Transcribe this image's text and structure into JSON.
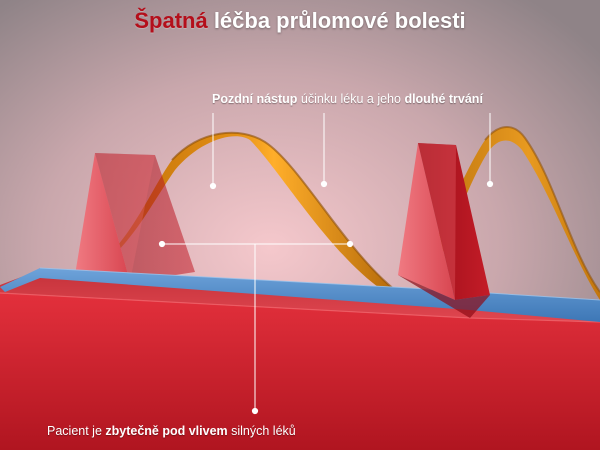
{
  "title": {
    "accent": "Špatná",
    "rest": " léčba průlomové bolesti"
  },
  "annotation_top": {
    "bold1": "Pozdní nástup",
    "normal1": " účinku léku a jeho ",
    "bold2": "dlouhé trvání"
  },
  "annotation_bottom": {
    "normal1": "Pacient je ",
    "bold1": "zbytečně pod vlivem",
    "normal2": " silných léků"
  },
  "colors": {
    "background_top": "#a89a9e",
    "background_glow": "#f4c4c8",
    "red_base": "#d31e2a",
    "blue_band": "#4f8bc9",
    "orange_wave": "#e08a12",
    "title_accent": "#b40f1b"
  }
}
